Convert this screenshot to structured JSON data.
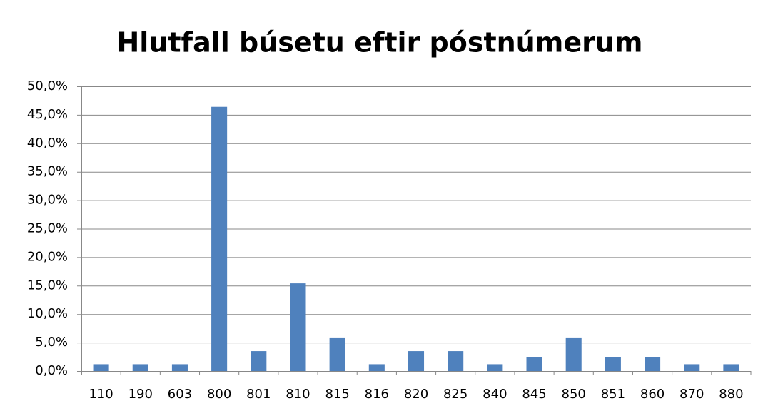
{
  "chart_data": {
    "type": "bar",
    "title": "Hlutfall búsetu eftir póstnúmerum",
    "categories": [
      "110",
      "190",
      "603",
      "800",
      "801",
      "810",
      "815",
      "816",
      "820",
      "825",
      "840",
      "845",
      "850",
      "851",
      "860",
      "870",
      "880"
    ],
    "values": [
      1.2,
      1.2,
      1.2,
      46.4,
      3.5,
      15.4,
      5.9,
      1.2,
      3.5,
      3.5,
      1.2,
      2.4,
      5.9,
      2.4,
      2.4,
      1.2,
      1.2
    ],
    "color": "#4f81bd",
    "ylim": [
      0,
      50
    ],
    "yticks": [
      {
        "value": 0,
        "label": "0,0%"
      },
      {
        "value": 5,
        "label": "5,0%"
      },
      {
        "value": 10,
        "label": "10,0%"
      },
      {
        "value": 15,
        "label": "15,0%"
      },
      {
        "value": 20,
        "label": "20,0%"
      },
      {
        "value": 25,
        "label": "25,0%"
      },
      {
        "value": 30,
        "label": "30,0%"
      },
      {
        "value": 35,
        "label": "35,0%"
      },
      {
        "value": 40,
        "label": "40,0%"
      },
      {
        "value": 45,
        "label": "45,0%"
      },
      {
        "value": 50,
        "label": "50,0%"
      }
    ],
    "grid": true
  }
}
